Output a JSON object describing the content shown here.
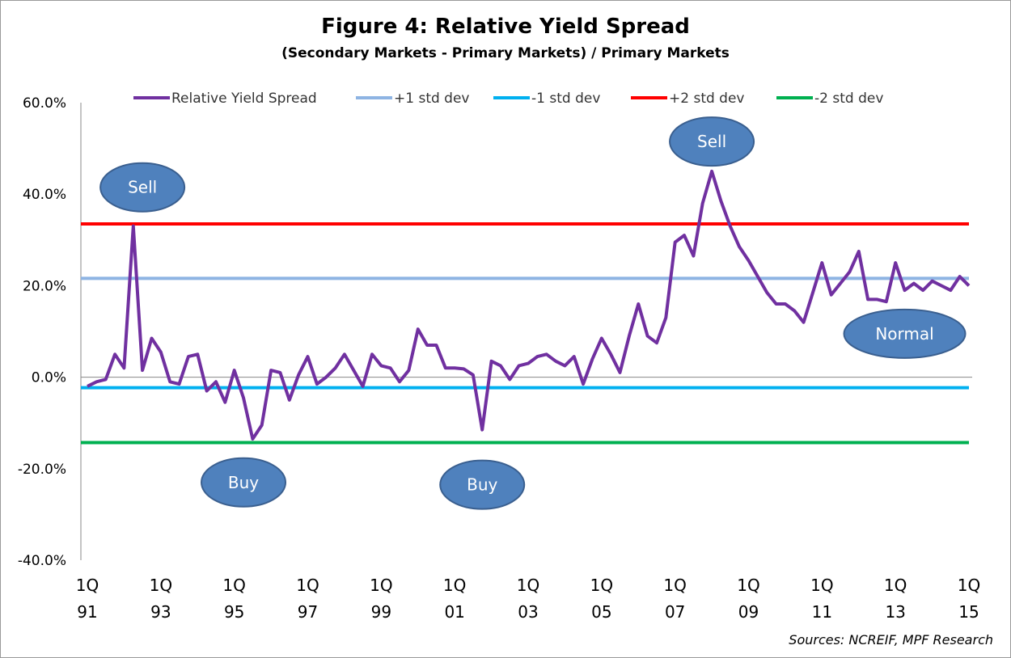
{
  "title": "Figure 4: Relative Yield Spread",
  "subtitle": "(Secondary Markets - Primary Markets) / Primary Markets",
  "source": "Sources: NCREIF, MPF Research",
  "chart_data": {
    "type": "line",
    "ylim": [
      -40,
      60
    ],
    "yticks": [
      "60.0%",
      "40.0%",
      "20.0%",
      "0.0%",
      "-20.0%",
      "-40.0%"
    ],
    "ytick_values": [
      60,
      40,
      20,
      0,
      -20,
      -40
    ],
    "x_tick_labels": [
      {
        "q": "1Q",
        "y": "91"
      },
      {
        "q": "1Q",
        "y": "93"
      },
      {
        "q": "1Q",
        "y": "95"
      },
      {
        "q": "1Q",
        "y": "97"
      },
      {
        "q": "1Q",
        "y": "99"
      },
      {
        "q": "1Q",
        "y": "01"
      },
      {
        "q": "1Q",
        "y": "03"
      },
      {
        "q": "1Q",
        "y": "05"
      },
      {
        "q": "1Q",
        "y": "07"
      },
      {
        "q": "1Q",
        "y": "09"
      },
      {
        "q": "1Q",
        "y": "11"
      },
      {
        "q": "1Q",
        "y": "13"
      },
      {
        "q": "1Q",
        "y": "15"
      }
    ],
    "x_start": "1Q91",
    "x_end": "1Q15",
    "series": [
      {
        "name": "Relative Yield Spread",
        "color": "#7030A0",
        "values": [
          -2.0,
          -1.0,
          -0.5,
          5.0,
          2.0,
          33.0,
          1.5,
          8.5,
          5.5,
          -1.0,
          -1.5,
          4.5,
          5.0,
          -3.0,
          -1.0,
          -5.5,
          1.5,
          -4.5,
          -13.5,
          -10.5,
          1.5,
          1.0,
          -5.0,
          0.5,
          4.5,
          -1.5,
          0.0,
          2.0,
          5.0,
          1.5,
          -2.0,
          5.0,
          2.5,
          2.0,
          -1.0,
          1.5,
          10.5,
          7.0,
          7.0,
          2.0,
          2.0,
          1.8,
          0.5,
          -11.5,
          3.5,
          2.5,
          -0.5,
          2.5,
          3.0,
          4.5,
          5.0,
          3.5,
          2.5,
          4.5,
          -1.5,
          4.0,
          8.5,
          5.0,
          1.0,
          9.0,
          16.0,
          9.0,
          7.5,
          13.0,
          29.5,
          31.0,
          26.5,
          38.0,
          45.0,
          38.5,
          33.0,
          28.5,
          25.5,
          22.0,
          18.5,
          16.0,
          16.0,
          14.5,
          12.0,
          18.5,
          25.0,
          18.0,
          20.5,
          23.0,
          27.5,
          17.0,
          17.0,
          16.5,
          25.0,
          19.0,
          20.5,
          19.0,
          21.0,
          20.0,
          19.0,
          22.0,
          20.0
        ]
      }
    ],
    "reference_lines": [
      {
        "name": "+1 std dev",
        "value": 21.6,
        "color": "#8EB4E3"
      },
      {
        "name": "-1 std dev",
        "value": -2.3,
        "color": "#00B0F0"
      },
      {
        "name": "+2 std dev",
        "value": 33.5,
        "color": "#FF0000"
      },
      {
        "name": "-2 std dev",
        "value": -14.3,
        "color": "#00B050"
      }
    ],
    "legend_order": [
      {
        "name": "Relative Yield Spread",
        "color": "#7030A0"
      },
      {
        "name": "+1 std dev",
        "color": "#8EB4E3"
      },
      {
        "name": "-1 std dev",
        "color": "#00B0F0"
      },
      {
        "name": "+2 std dev",
        "color": "#FF0000"
      },
      {
        "name": "-2 std dev",
        "color": "#00B050"
      }
    ],
    "legend_position": "top",
    "annotations": [
      {
        "text": "Sell",
        "quarter": 6,
        "value": 41.5
      },
      {
        "text": "Buy",
        "quarter": 17,
        "value": -23
      },
      {
        "text": "Buy",
        "quarter": 43,
        "value": -23.5
      },
      {
        "text": "Sell",
        "quarter": 68,
        "value": 51.5
      },
      {
        "text": "Normal",
        "quarter": 89,
        "value": 9.5
      }
    ],
    "annotation_color": "#4F81BD",
    "grid": false
  }
}
